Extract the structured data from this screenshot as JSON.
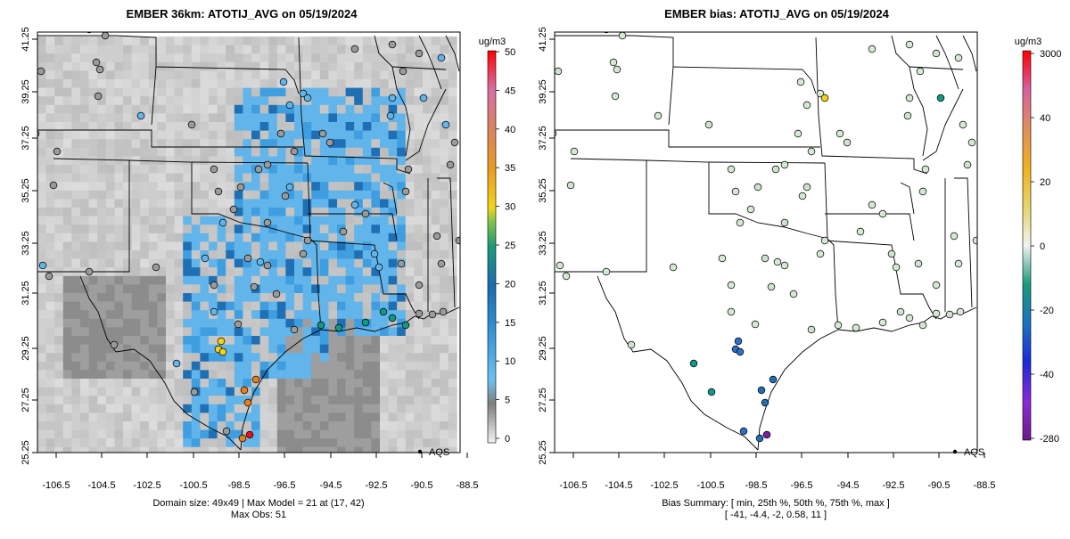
{
  "left_panel": {
    "title": "EMBER 36km: ATOTIJ_AVG on 05/19/2024",
    "x_ticks": [
      "-106.5",
      "-104.5",
      "-102.5",
      "-100.5",
      "-98.5",
      "-96.5",
      "-94.5",
      "-92.5",
      "-90.5",
      "-88.5"
    ],
    "y_ticks": [
      "41.25",
      "39.25",
      "37.25",
      "35.25",
      "33.25",
      "31.25",
      "29.25",
      "27.25",
      "25.25"
    ],
    "legend_label": "AQS",
    "colorbar": {
      "unit": "ug/m3",
      "labels": [
        "50",
        "45",
        "40",
        "35",
        "30",
        "25",
        "20",
        "15",
        "10",
        "5",
        "0"
      ]
    },
    "caption_line1": "Domain size: 49x49 | Max Model = 21 at (17, 42)",
    "caption_line2": "Max Obs: 51"
  },
  "right_panel": {
    "title": "EMBER bias: ATOTIJ_AVG on 05/19/2024",
    "x_ticks": [
      "-106.5",
      "-104.5",
      "-102.5",
      "-100.5",
      "-98.5",
      "-96.5",
      "-94.5",
      "-92.5",
      "-90.5",
      "-88.5"
    ],
    "y_ticks": [
      "41.25",
      "39.25",
      "37.25",
      "35.25",
      "33.25",
      "31.25",
      "29.25",
      "27.25",
      "25.25"
    ],
    "legend_label": "AQS",
    "colorbar": {
      "unit": "ug/m3",
      "labels": [
        "3000",
        "40",
        "20",
        "0",
        "-20",
        "-40",
        "-280"
      ]
    },
    "caption_line1": "Bias Summary: [ min, 25th %, 50th %, 75th %, max ]",
    "caption_line2": "[ -41,   -4.4,   -2,   0.58,   11 ]"
  },
  "colors": {
    "grey_light": "#d9d9d9",
    "grey_mid": "#a9a9a9",
    "blue_low": "#62b5ea",
    "blue_high": "#1f6fb4",
    "teal": "#0f9a86",
    "yellow": "#f1d21b",
    "orange": "#e7801b",
    "red": "#e8141a",
    "purple": "#7a1fa6"
  }
}
